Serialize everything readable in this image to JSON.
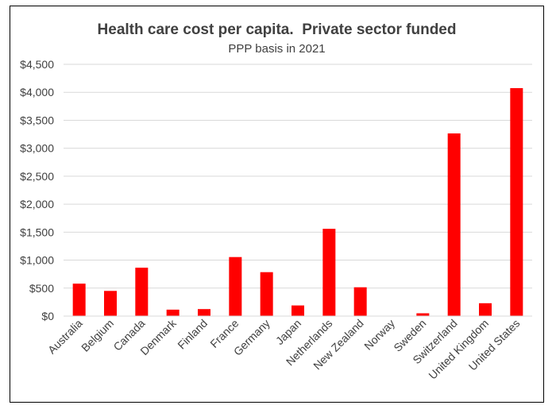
{
  "chart_data": {
    "type": "bar",
    "title": "Health care cost per capita.  Private sector funded",
    "subtitle": "PPP basis in 2021",
    "xlabel": "",
    "ylabel": "",
    "categories": [
      "Australia",
      "Belgium",
      "Canada",
      "Denmark",
      "Finland",
      "France",
      "Germany",
      "Japan",
      "Netherlands",
      "New Zealand",
      "Norway",
      "Sweden",
      "Switzerland",
      "United Kingdom",
      "United States"
    ],
    "values": [
      580,
      450,
      865,
      115,
      125,
      1055,
      785,
      190,
      1560,
      515,
      0,
      50,
      3265,
      230,
      4075
    ],
    "ylim": [
      0,
      4500
    ],
    "yticks": [
      0,
      500,
      1000,
      1500,
      2000,
      2500,
      3000,
      3500,
      4000,
      4500
    ],
    "ytick_labels": [
      "$0",
      "$500",
      "$1,000",
      "$1,500",
      "$2,000",
      "$2,500",
      "$3,000",
      "$3,500",
      "$4,000",
      "$4,500"
    ],
    "bar_color": "#ff0000",
    "gridlines": true,
    "legend": "none"
  }
}
